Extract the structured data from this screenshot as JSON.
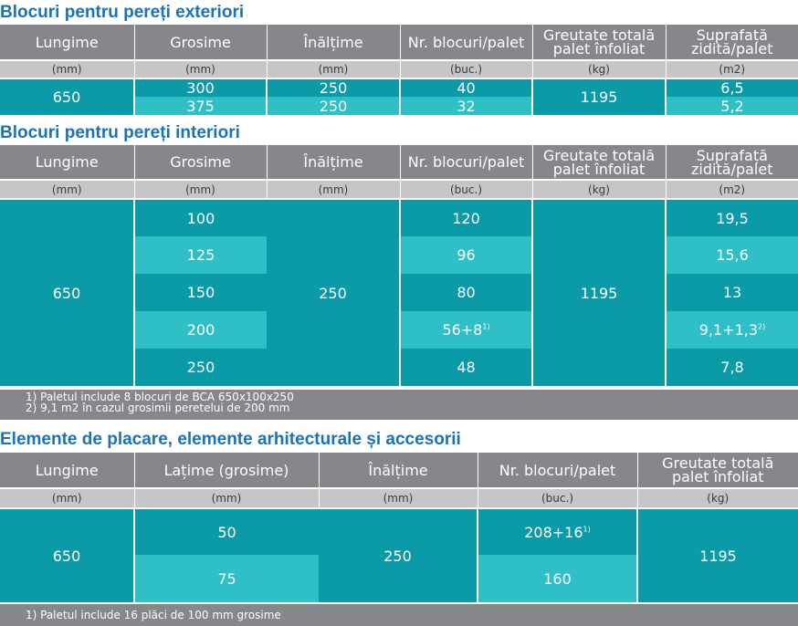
{
  "section1": {
    "title": "Blocuri pentru pereți exteriori",
    "headers": [
      "Lungime",
      "Grosime",
      "Înălțime",
      "Nr. blocuri/palet",
      "Greutate totală\npalet înfoliat",
      "Suprafață\nzidită/palet"
    ],
    "units": [
      "(mm)",
      "(mm)",
      "(mm)",
      "(buc.)",
      "(kg)",
      "(m2)"
    ],
    "lungime": "650",
    "greutate": "1195",
    "rows": [
      {
        "grosime": "300",
        "inaltime": "250",
        "nr": "40",
        "suprafata": "6,5"
      },
      {
        "grosime": "375",
        "inaltime": "250",
        "nr": "32",
        "suprafata": "5,2"
      }
    ]
  },
  "section2": {
    "title": "Blocuri pentru pereți interiori",
    "headers": [
      "Lungime",
      "Grosime",
      "Înălțime",
      "Nr. blocuri/palet",
      "Greutate totală\npalet înfoliat",
      "Suprafață\nzidită/palet"
    ],
    "units": [
      "(mm)",
      "(mm)",
      "(mm)",
      "(buc.)",
      "(kg)",
      "(m2)"
    ],
    "lungime": "650",
    "inaltime": "250",
    "greutate": "1195",
    "rows": [
      {
        "grosime": "100",
        "nr": "120",
        "nr_sup": "",
        "suprafata": "19,5",
        "suprafata_sup": ""
      },
      {
        "grosime": "125",
        "nr": "96",
        "nr_sup": "",
        "suprafata": "15,6",
        "suprafata_sup": ""
      },
      {
        "grosime": "150",
        "nr": "80",
        "nr_sup": "",
        "suprafata": "13",
        "suprafata_sup": ""
      },
      {
        "grosime": "200",
        "nr": "56+8",
        "nr_sup": "1)",
        "suprafata": "9,1+1,3",
        "suprafata_sup": "2)"
      },
      {
        "grosime": "250",
        "nr": "48",
        "nr_sup": "",
        "suprafata": "7,8",
        "suprafata_sup": ""
      }
    ],
    "notes": [
      "1) Paletul include 8 blocuri de BCA 650x100x250",
      "2) 9,1 m2 în cazul grosimii peretelui de 200 mm"
    ]
  },
  "section3": {
    "title": "Elemente de placare, elemente arhitecturale și accesorii",
    "headers": [
      "Lungime",
      "Lațime (grosime)",
      "Înălțime",
      "Nr. blocuri/palet",
      "Greutate totală\npalet înfoliat"
    ],
    "units": [
      "(mm)",
      "(mm)",
      "(mm)",
      "(buc.)",
      "(kg)"
    ],
    "lungime": "650",
    "inaltime": "250",
    "greutate": "1195",
    "rows": [
      {
        "latime": "50",
        "nr": "208+16",
        "nr_sup": "1)"
      },
      {
        "latime": "75",
        "nr": "160",
        "nr_sup": ""
      }
    ],
    "notes": [
      "1) Paletul include 16 plăci de 100 mm grosime"
    ]
  },
  "colors": {
    "title": "#1a72b8",
    "header": "#86868b",
    "units": "#c6c6c9",
    "dark": "#0a9aa8",
    "light": "#2fbfc6"
  }
}
